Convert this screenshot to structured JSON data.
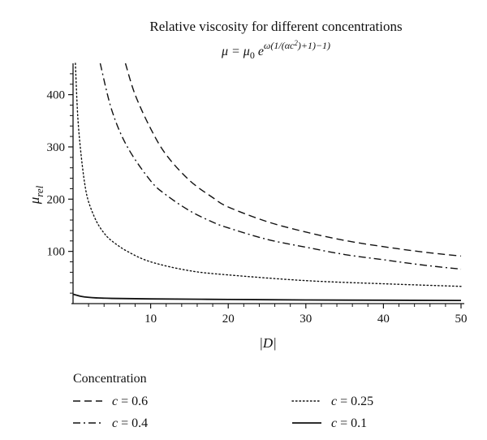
{
  "chart_data": {
    "type": "line",
    "title": "Relative viscosity for different concentrations",
    "subtitle": "μ = μ0 e^(ω(1/(αc²)+1)−1)",
    "subtitle_parts": {
      "lhs": "μ = μ",
      "sub0": "0",
      "base": " e",
      "exp": "ω(1/(αc",
      "exp_sq": "2",
      "exp_end": ")+1)−1)"
    },
    "xlabel": "|D|",
    "ylabel": "μ",
    "ylabel_sub": "rel",
    "xlim": [
      0,
      50
    ],
    "ylim": [
      0,
      460
    ],
    "xticks": [
      10,
      20,
      30,
      40,
      50
    ],
    "yticks": [
      100,
      200,
      300,
      400
    ],
    "grid": false,
    "legend": {
      "title": "Concentration",
      "placement": "bottom"
    },
    "series": [
      {
        "name": "c = 0.6",
        "name_var": "c",
        "name_val": " = 0.6",
        "dash": "dashed",
        "x": [
          6.75,
          8,
          10,
          12,
          15,
          18,
          20,
          25,
          30,
          35,
          40,
          45,
          50
        ],
        "y": [
          460,
          400,
          335,
          285,
          236,
          203,
          185,
          157,
          137,
          121,
          109,
          99,
          91
        ]
      },
      {
        "name": "c = 0.4",
        "name_var": "c",
        "name_val": " = 0.4",
        "dash": "dashdot",
        "x": [
          3.5,
          5,
          7,
          10,
          12,
          15,
          18,
          20,
          25,
          30,
          35,
          40,
          45,
          50
        ],
        "y": [
          460,
          370,
          300,
          235,
          208,
          178,
          156,
          145,
          123,
          108,
          94,
          84,
          74,
          66
        ]
      },
      {
        "name": "c = 0.25",
        "name_var": "c",
        "name_val": " = 0.25",
        "dash": "dotted",
        "x": [
          0.3,
          0.6,
          1,
          1.5,
          2,
          3,
          4,
          5,
          7,
          10,
          15,
          20,
          30,
          40,
          50
        ],
        "y": [
          460,
          360,
          290,
          230,
          195,
          158,
          135,
          120,
          100,
          80,
          63,
          55,
          44,
          38,
          33
        ]
      },
      {
        "name": "c = 0.1",
        "name_var": "c",
        "name_val": " = 0.1",
        "dash": "solid",
        "x": [
          0,
          0.5,
          1,
          2,
          3,
          5,
          10,
          20,
          30,
          40,
          50
        ],
        "y": [
          18,
          16,
          14,
          12,
          11,
          10,
          9,
          8,
          7,
          6.5,
          6
        ]
      }
    ]
  }
}
